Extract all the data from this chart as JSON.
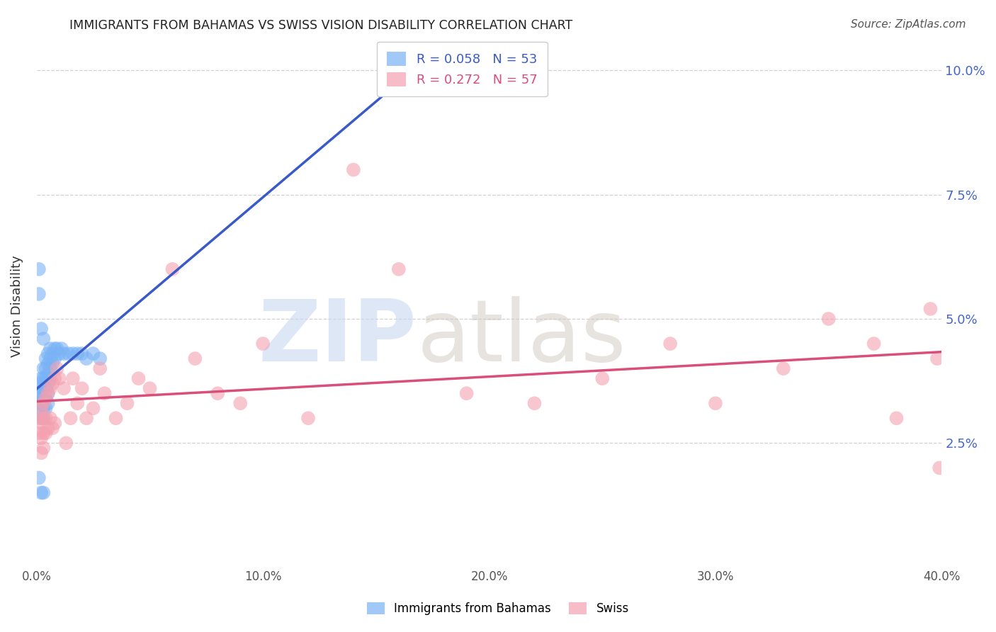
{
  "title": "IMMIGRANTS FROM BAHAMAS VS SWISS VISION DISABILITY CORRELATION CHART",
  "source": "Source: ZipAtlas.com",
  "ylabel": "Vision Disability",
  "xlim": [
    0.0,
    0.4
  ],
  "ylim": [
    0.0,
    0.105
  ],
  "yticks": [
    0.025,
    0.05,
    0.075,
    0.1
  ],
  "ytick_labels": [
    "2.5%",
    "5.0%",
    "7.5%",
    "10.0%"
  ],
  "xticks": [
    0.0,
    0.1,
    0.2,
    0.3,
    0.4
  ],
  "xtick_labels": [
    "0.0%",
    "10.0%",
    "20.0%",
    "30.0%",
    "40.0%"
  ],
  "grid_color": "#cccccc",
  "background_color": "#ffffff",
  "blue_color": "#7ab3f5",
  "pink_color": "#f4a0b0",
  "blue_line_color": "#3a5bc7",
  "pink_line_color": "#d94f7a",
  "legend_R_blue": "0.058",
  "legend_N_blue": "53",
  "legend_R_pink": "0.272",
  "legend_N_pink": "57",
  "label_blue": "Immigrants from Bahamas",
  "label_pink": "Swiss",
  "watermark_zip": "ZIP",
  "watermark_atlas": "atlas",
  "bahamas_x": [
    0.0005,
    0.001,
    0.001,
    0.0015,
    0.002,
    0.002,
    0.002,
    0.002,
    0.002,
    0.003,
    0.003,
    0.003,
    0.003,
    0.003,
    0.003,
    0.004,
    0.004,
    0.004,
    0.004,
    0.004,
    0.004,
    0.005,
    0.005,
    0.005,
    0.005,
    0.005,
    0.005,
    0.006,
    0.006,
    0.006,
    0.006,
    0.007,
    0.007,
    0.008,
    0.008,
    0.009,
    0.01,
    0.011,
    0.012,
    0.014,
    0.016,
    0.018,
    0.02,
    0.022,
    0.025,
    0.028,
    0.001,
    0.001,
    0.002,
    0.003,
    0.001,
    0.002,
    0.003
  ],
  "bahamas_y": [
    0.033,
    0.035,
    0.032,
    0.036,
    0.038,
    0.037,
    0.035,
    0.033,
    0.03,
    0.04,
    0.038,
    0.036,
    0.034,
    0.032,
    0.03,
    0.042,
    0.04,
    0.038,
    0.036,
    0.034,
    0.032,
    0.043,
    0.041,
    0.039,
    0.037,
    0.035,
    0.033,
    0.044,
    0.042,
    0.04,
    0.038,
    0.043,
    0.041,
    0.044,
    0.042,
    0.044,
    0.043,
    0.044,
    0.043,
    0.043,
    0.043,
    0.043,
    0.043,
    0.042,
    0.043,
    0.042,
    0.06,
    0.055,
    0.048,
    0.046,
    0.018,
    0.015,
    0.015
  ],
  "swiss_x": [
    0.001,
    0.001,
    0.002,
    0.002,
    0.002,
    0.002,
    0.003,
    0.003,
    0.003,
    0.003,
    0.004,
    0.004,
    0.004,
    0.005,
    0.005,
    0.006,
    0.006,
    0.007,
    0.007,
    0.008,
    0.008,
    0.009,
    0.01,
    0.012,
    0.013,
    0.015,
    0.016,
    0.018,
    0.02,
    0.022,
    0.025,
    0.028,
    0.03,
    0.035,
    0.04,
    0.045,
    0.05,
    0.06,
    0.07,
    0.08,
    0.09,
    0.1,
    0.12,
    0.14,
    0.16,
    0.19,
    0.22,
    0.25,
    0.28,
    0.3,
    0.33,
    0.35,
    0.37,
    0.38,
    0.395,
    0.398,
    0.399
  ],
  "swiss_y": [
    0.03,
    0.027,
    0.032,
    0.029,
    0.026,
    0.023,
    0.033,
    0.03,
    0.027,
    0.024,
    0.034,
    0.03,
    0.027,
    0.035,
    0.028,
    0.036,
    0.03,
    0.037,
    0.028,
    0.038,
    0.029,
    0.04,
    0.038,
    0.036,
    0.025,
    0.03,
    0.038,
    0.033,
    0.036,
    0.03,
    0.032,
    0.04,
    0.035,
    0.03,
    0.033,
    0.038,
    0.036,
    0.06,
    0.042,
    0.035,
    0.033,
    0.045,
    0.03,
    0.08,
    0.06,
    0.035,
    0.033,
    0.038,
    0.045,
    0.033,
    0.04,
    0.05,
    0.045,
    0.03,
    0.052,
    0.042,
    0.02
  ]
}
